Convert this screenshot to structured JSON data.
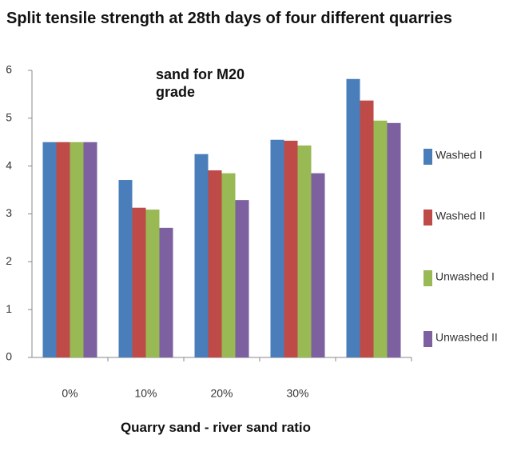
{
  "chart_data": {
    "type": "bar",
    "title": "Split tensile strength at 28th days of four different quarries",
    "annotation": "sand for M20 grade",
    "x_label": "Quarry sand - river sand ratio",
    "categories": [
      "0%",
      "10%",
      "20%",
      "30%",
      null
    ],
    "series": [
      {
        "name": "Washed I",
        "color": "#4a7ebb",
        "values": [
          4.5,
          3.71,
          4.25,
          4.55,
          5.82
        ]
      },
      {
        "name": "Washed II",
        "color": "#be4b48",
        "values": [
          4.5,
          3.13,
          3.91,
          4.53,
          5.37
        ]
      },
      {
        "name": "Unwashed I",
        "color": "#98b954",
        "values": [
          4.5,
          3.09,
          3.85,
          4.43,
          4.95
        ]
      },
      {
        "name": "Unwashed II",
        "color": "#7d60a0",
        "values": [
          4.5,
          2.71,
          3.29,
          3.85,
          4.9
        ]
      }
    ],
    "ylim": [
      0,
      6
    ],
    "yticks": [
      0,
      1,
      2,
      3,
      4,
      5,
      6
    ],
    "grid": false,
    "legend": "right"
  }
}
